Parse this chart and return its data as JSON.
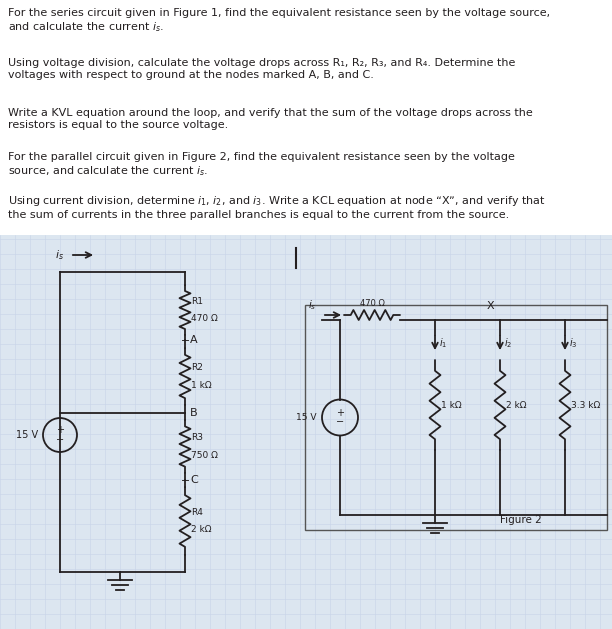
{
  "bg_color": "#ffffff",
  "text_color": "#231f20",
  "fig_width": 6.12,
  "fig_height": 6.29,
  "grid_color": "#c8d4e8",
  "circuit_bg": "#dce6f0",
  "para1": "For the series circuit given in Figure 1, find the equivalent resistance seen by the voltage source,\nand calculate the current $i_s$.",
  "para2_a": "Using voltage division, calculate the voltage drops across R",
  "para2_b": ", R",
  "para2_c": ", R",
  "para2_d": ", and R",
  "para2_e": ". Determine the\nvoltages with respect to ground at the nodes marked A, B, and C.",
  "para3": "Write a KVL equation around the loop, and verify that the sum of the voltage drops across the\nresistors is equal to the source voltage.",
  "para4": "For the parallel circuit given in Figure 2, find the equivalent resistance seen by the voltage\nsource, and calculate the current $i_s$.",
  "para5": "Using current division, determine $i_1$, $i_2$, and $i_3$. Write a KCL equation at node “X”, and verify that\nthe sum of currents in the three parallel branches is equal to the current from the source.",
  "lw": 1.3,
  "fs": 8.0
}
